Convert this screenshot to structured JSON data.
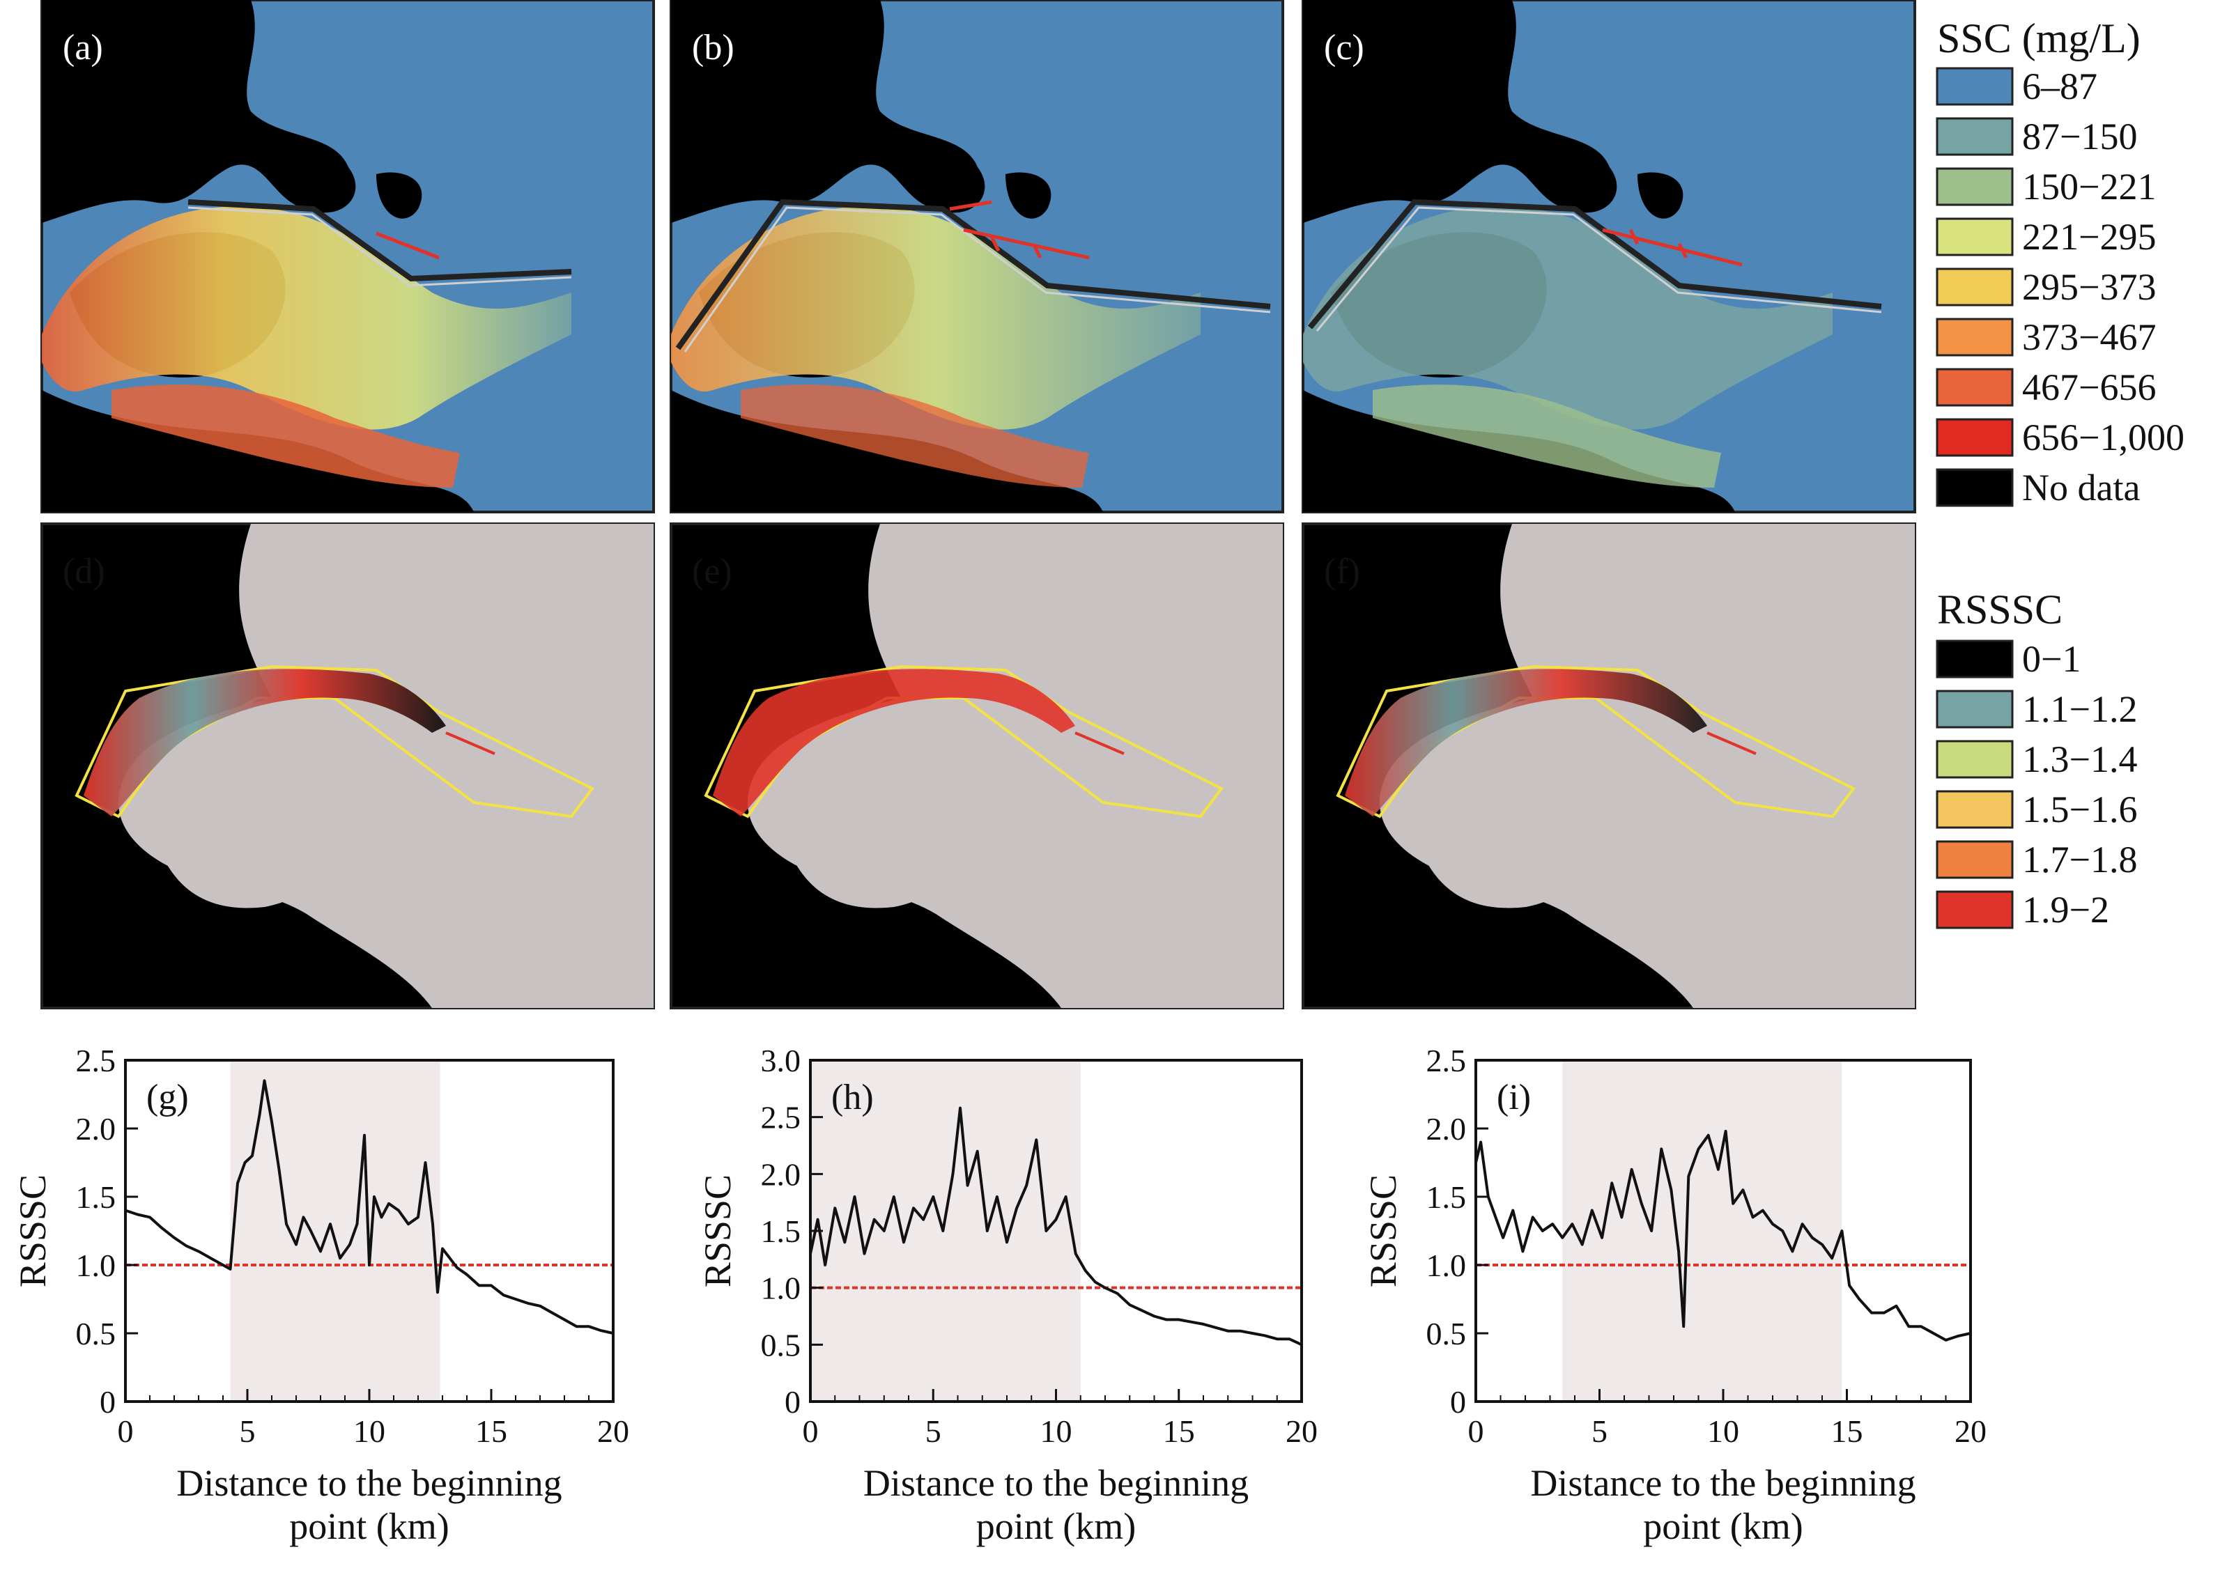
{
  "map_panels": [
    {
      "label": "(a)",
      "kind": "ssc"
    },
    {
      "label": "(b)",
      "kind": "ssc"
    },
    {
      "label": "(c)",
      "kind": "ssc"
    },
    {
      "label": "(d)",
      "kind": "rsssc"
    },
    {
      "label": "(e)",
      "kind": "rsssc"
    },
    {
      "label": "(f)",
      "kind": "rsssc"
    }
  ],
  "ssc_legend": {
    "title": "SSC (mg/L)",
    "items": [
      {
        "label": "6–87",
        "color": "#4f86b8"
      },
      {
        "label": "87−150",
        "color": "#76a3a4"
      },
      {
        "label": "150−221",
        "color": "#9dbf8b"
      },
      {
        "label": "221−295",
        "color": "#d8e27f"
      },
      {
        "label": "295−373",
        "color": "#f3cc58"
      },
      {
        "label": "373−467",
        "color": "#f29245"
      },
      {
        "label": "467−656",
        "color": "#e8643a"
      },
      {
        "label": "656−1,000",
        "color": "#e02a22"
      },
      {
        "label": "No data",
        "color": "#000000"
      }
    ]
  },
  "rsssc_legend": {
    "title": "RSSSC",
    "items": [
      {
        "label": "0−1",
        "color": "#000000"
      },
      {
        "label": "1.1−1.2",
        "color": "#76a3a4"
      },
      {
        "label": "1.3−1.4",
        "color": "#c9dc7d"
      },
      {
        "label": "1.5−1.6",
        "color": "#f2c55e"
      },
      {
        "label": "1.7−1.8",
        "color": "#ee8040"
      },
      {
        "label": "1.9−2",
        "color": "#e0342a"
      }
    ]
  },
  "colors": {
    "water_blue": "#4f86b8",
    "land": "#000000",
    "rsssc_land": "#c9c2c3",
    "polygon": "#f3e244",
    "jetty": "#e0342a",
    "shade": "#efe9ea",
    "reference": "#e0342a"
  },
  "chart_data": [
    {
      "type": "line",
      "panel_label": "(g)",
      "xlabel": [
        "Distance to the beginning",
        "point (km)"
      ],
      "ylabel": "RSSSC",
      "xlim": [
        0,
        20
      ],
      "ylim": [
        0,
        2.5
      ],
      "xticks": [
        "0",
        "5",
        "10",
        "15",
        "20"
      ],
      "yticks": [
        "0",
        "0.5",
        "1.0",
        "1.5",
        "2.0",
        "2.5"
      ],
      "shaded_range": [
        4.3,
        12.9
      ],
      "reference_y": 1.0,
      "series": [
        {
          "x": [
            0,
            0.5,
            1,
            1.5,
            2,
            2.5,
            3,
            3.5,
            4,
            4.3,
            4.6,
            4.9,
            5.2,
            5.5,
            5.7,
            6,
            6.3,
            6.6,
            7,
            7.3,
            7.6,
            8,
            8.4,
            8.8,
            9.2,
            9.5,
            9.8,
            10,
            10.2,
            10.5,
            10.8,
            11.2,
            11.6,
            12,
            12.3,
            12.6,
            12.8,
            13,
            13.3,
            13.6,
            14,
            14.5,
            15,
            15.5,
            16,
            16.5,
            17,
            17.5,
            18,
            18.5,
            19,
            19.5,
            20
          ],
          "y": [
            1.4,
            1.37,
            1.35,
            1.27,
            1.2,
            1.14,
            1.1,
            1.05,
            1.0,
            0.97,
            1.6,
            1.75,
            1.8,
            2.1,
            2.35,
            2.05,
            1.7,
            1.3,
            1.15,
            1.35,
            1.25,
            1.1,
            1.3,
            1.05,
            1.15,
            1.3,
            1.95,
            1.0,
            1.5,
            1.35,
            1.45,
            1.4,
            1.3,
            1.35,
            1.75,
            1.3,
            0.8,
            1.12,
            1.05,
            0.98,
            0.93,
            0.85,
            0.85,
            0.78,
            0.75,
            0.72,
            0.7,
            0.65,
            0.6,
            0.55,
            0.55,
            0.52,
            0.5
          ]
        }
      ]
    },
    {
      "type": "line",
      "panel_label": "(h)",
      "xlabel": [
        "Distance to the beginning",
        "point (km)"
      ],
      "ylabel": "RSSSC",
      "xlim": [
        0,
        20
      ],
      "ylim": [
        0,
        3.0
      ],
      "xticks": [
        "0",
        "5",
        "10",
        "15",
        "20"
      ],
      "yticks": [
        "0",
        "0.5",
        "1.0",
        "1.5",
        "2.0",
        "2.5",
        "3.0"
      ],
      "shaded_range": [
        0,
        11.0
      ],
      "reference_y": 1.0,
      "series": [
        {
          "x": [
            0,
            0.3,
            0.6,
            1,
            1.4,
            1.8,
            2.2,
            2.6,
            3,
            3.4,
            3.8,
            4.2,
            4.6,
            5,
            5.4,
            5.8,
            6.1,
            6.4,
            6.8,
            7.2,
            7.6,
            8,
            8.4,
            8.8,
            9.2,
            9.6,
            10,
            10.4,
            10.8,
            11.2,
            11.6,
            12,
            12.5,
            13,
            13.5,
            14,
            14.5,
            15,
            15.5,
            16,
            16.5,
            17,
            17.5,
            18,
            18.5,
            19,
            19.5,
            20
          ],
          "y": [
            1.3,
            1.6,
            1.2,
            1.7,
            1.4,
            1.8,
            1.3,
            1.6,
            1.5,
            1.8,
            1.4,
            1.7,
            1.6,
            1.8,
            1.5,
            2.0,
            2.58,
            1.9,
            2.2,
            1.5,
            1.8,
            1.4,
            1.7,
            1.9,
            2.3,
            1.5,
            1.6,
            1.8,
            1.3,
            1.15,
            1.05,
            1.0,
            0.95,
            0.85,
            0.8,
            0.75,
            0.72,
            0.72,
            0.7,
            0.68,
            0.65,
            0.62,
            0.62,
            0.6,
            0.58,
            0.55,
            0.55,
            0.5
          ]
        }
      ]
    },
    {
      "type": "line",
      "panel_label": "(i)",
      "xlabel": [
        "Distance to the beginning",
        "point (km)"
      ],
      "ylabel": "RSSSC",
      "xlim": [
        0,
        20
      ],
      "ylim": [
        0,
        2.5
      ],
      "xticks": [
        "0",
        "5",
        "10",
        "15",
        "20"
      ],
      "yticks": [
        "0",
        "0.5",
        "1.0",
        "1.5",
        "2.0",
        "2.5"
      ],
      "shaded_range": [
        3.5,
        14.8
      ],
      "reference_y": 1.0,
      "series": [
        {
          "x": [
            0,
            0.2,
            0.5,
            0.8,
            1.1,
            1.5,
            1.9,
            2.3,
            2.7,
            3.1,
            3.5,
            3.9,
            4.3,
            4.7,
            5.1,
            5.5,
            5.9,
            6.3,
            6.7,
            7.1,
            7.5,
            7.9,
            8.2,
            8.4,
            8.6,
            9,
            9.4,
            9.8,
            10.1,
            10.4,
            10.8,
            11.2,
            11.6,
            12,
            12.4,
            12.8,
            13.2,
            13.6,
            14,
            14.4,
            14.8,
            15.1,
            15.5,
            16,
            16.5,
            17,
            17.5,
            18,
            18.5,
            19,
            19.5,
            20
          ],
          "y": [
            1.75,
            1.9,
            1.5,
            1.35,
            1.2,
            1.4,
            1.1,
            1.35,
            1.25,
            1.3,
            1.2,
            1.3,
            1.15,
            1.4,
            1.2,
            1.6,
            1.35,
            1.7,
            1.45,
            1.25,
            1.85,
            1.55,
            1.1,
            0.55,
            1.65,
            1.85,
            1.95,
            1.7,
            1.98,
            1.45,
            1.55,
            1.35,
            1.4,
            1.3,
            1.25,
            1.1,
            1.3,
            1.2,
            1.15,
            1.05,
            1.25,
            0.85,
            0.75,
            0.65,
            0.65,
            0.7,
            0.55,
            0.55,
            0.5,
            0.45,
            0.48,
            0.5
          ]
        }
      ]
    }
  ]
}
